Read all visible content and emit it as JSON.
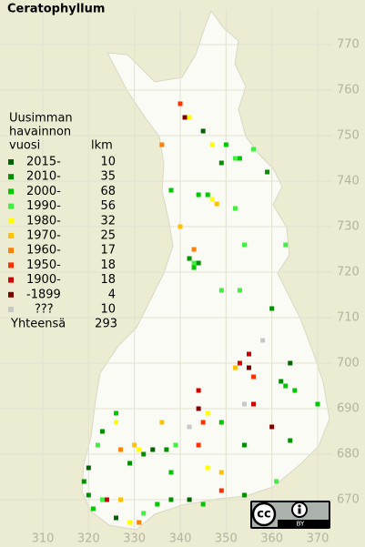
{
  "map": {
    "title": "Ceratophyllum",
    "legend": {
      "heading": [
        "Uusimman",
        "havainnon",
        "vuosi"
      ],
      "count_label": "lkm",
      "classes": [
        {
          "label": "2015-",
          "count": 10,
          "color": "#006400"
        },
        {
          "label": "2010-",
          "count": 35,
          "color": "#009000"
        },
        {
          "label": "2000-",
          "count": 68,
          "color": "#00c800"
        },
        {
          "label": "1990-",
          "count": 56,
          "color": "#40f040"
        },
        {
          "label": "1980-",
          "count": 32,
          "color": "#ffff00"
        },
        {
          "label": "1970-",
          "count": 25,
          "color": "#ffc000"
        },
        {
          "label": "1960-",
          "count": 17,
          "color": "#ff8000"
        },
        {
          "label": "1950-",
          "count": 18,
          "color": "#ff3000"
        },
        {
          "label": "1900-",
          "count": 18,
          "color": "#d00000"
        },
        {
          "label": "-1899",
          "count": 4,
          "color": "#800000"
        },
        {
          "label": "???",
          "count": 10,
          "color": "#c8c8c8"
        }
      ],
      "total_label": "Yhteensä",
      "total": 293
    },
    "xlim": [
      310,
      370
    ],
    "ylim": [
      670,
      770
    ],
    "xticks": [
      310,
      320,
      330,
      340,
      350,
      360,
      370
    ],
    "yticks": [
      670,
      680,
      690,
      700,
      710,
      720,
      730,
      740,
      750,
      760,
      770
    ],
    "points": [
      [
        340,
        757,
        7
      ],
      [
        341,
        754,
        9
      ],
      [
        342,
        754,
        4
      ],
      [
        345,
        751,
        0
      ],
      [
        336,
        748,
        6
      ],
      [
        347,
        748,
        4
      ],
      [
        350,
        748,
        2
      ],
      [
        349,
        744,
        1
      ],
      [
        352,
        745,
        3
      ],
      [
        353,
        745,
        2
      ],
      [
        356,
        747,
        3
      ],
      [
        359,
        742,
        1
      ],
      [
        338,
        738,
        2
      ],
      [
        344,
        737,
        2
      ],
      [
        346,
        737,
        2
      ],
      [
        347,
        736,
        4
      ],
      [
        348,
        735,
        5
      ],
      [
        352,
        734,
        3
      ],
      [
        340,
        730,
        5
      ],
      [
        354,
        726,
        3
      ],
      [
        363,
        726,
        3
      ],
      [
        343,
        725,
        6
      ],
      [
        342,
        723,
        1
      ],
      [
        343,
        722,
        3
      ],
      [
        343,
        721,
        2
      ],
      [
        344,
        722,
        1
      ],
      [
        349,
        716,
        3
      ],
      [
        353,
        716,
        3
      ],
      [
        360,
        712,
        1
      ],
      [
        358,
        705,
        10
      ],
      [
        355,
        702,
        8
      ],
      [
        353,
        700,
        8
      ],
      [
        352,
        699,
        5
      ],
      [
        355,
        699,
        9
      ],
      [
        356,
        697,
        7
      ],
      [
        364,
        700,
        0
      ],
      [
        344,
        694,
        8
      ],
      [
        362,
        696,
        1
      ],
      [
        363,
        695,
        2
      ],
      [
        365,
        694,
        2
      ],
      [
        370,
        691,
        2
      ],
      [
        344,
        690,
        9
      ],
      [
        346,
        689,
        4
      ],
      [
        345,
        687,
        7
      ],
      [
        349,
        687,
        2
      ],
      [
        354,
        691,
        10
      ],
      [
        356,
        691,
        8
      ],
      [
        360,
        686,
        9
      ],
      [
        342,
        686,
        10
      ],
      [
        336,
        687,
        5
      ],
      [
        326,
        687,
        4
      ],
      [
        326,
        689,
        2
      ],
      [
        323,
        685,
        1
      ],
      [
        322,
        682,
        3
      ],
      [
        327,
        681,
        6
      ],
      [
        330,
        682,
        5
      ],
      [
        331,
        681,
        4
      ],
      [
        332,
        680,
        1
      ],
      [
        334,
        681,
        0
      ],
      [
        337,
        681,
        1
      ],
      [
        339,
        682,
        3
      ],
      [
        344,
        682,
        7
      ],
      [
        329,
        678,
        1
      ],
      [
        338,
        676,
        2
      ],
      [
        346,
        677,
        4
      ],
      [
        349,
        676,
        5
      ],
      [
        354,
        682,
        1
      ],
      [
        364,
        683,
        1
      ],
      [
        320,
        677,
        0
      ],
      [
        319,
        674,
        1
      ],
      [
        320,
        671,
        1
      ],
      [
        321,
        668,
        2
      ],
      [
        323,
        670,
        3
      ],
      [
        324,
        670,
        8
      ],
      [
        327,
        670,
        5
      ],
      [
        326,
        666,
        0
      ],
      [
        329,
        665,
        4
      ],
      [
        331,
        665,
        6
      ],
      [
        332,
        667,
        3
      ],
      [
        335,
        669,
        2
      ],
      [
        338,
        670,
        1
      ],
      [
        342,
        670,
        0
      ],
      [
        345,
        669,
        2
      ],
      [
        349,
        672,
        7
      ],
      [
        354,
        671,
        1
      ],
      [
        361,
        674,
        3
      ]
    ],
    "license": {
      "icon": "cc",
      "label": "BY"
    }
  }
}
